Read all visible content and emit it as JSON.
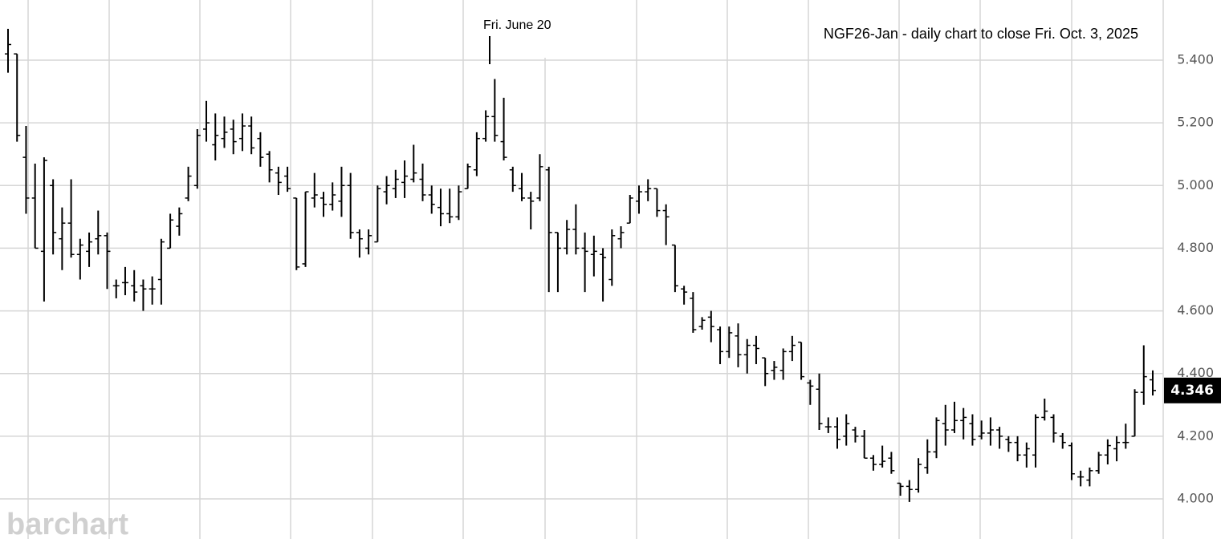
{
  "chart_data": {
    "type": "ohlc",
    "title": "NGF26-Jan - daily chart to close Fri. Oct. 3, 2025",
    "annotation": "Fri. June 20",
    "watermark": "barchart",
    "color": "#000000",
    "grid": true,
    "ylim": [
      3.872,
      5.592
    ],
    "yticks": [
      {
        "value": 4.0,
        "label": "4.000"
      },
      {
        "value": 4.2,
        "label": "4.200"
      },
      {
        "value": 4.4,
        "label": "4.400"
      },
      {
        "value": 4.6,
        "label": "4.600"
      },
      {
        "value": 4.8,
        "label": "4.800"
      },
      {
        "value": 5.0,
        "label": "5.000"
      },
      {
        "value": 5.2,
        "label": "5.200"
      },
      {
        "value": 5.4,
        "label": "5.400"
      }
    ],
    "open": [
      5.42,
      5.42,
      5.09,
      4.96,
      4.79,
      5.0,
      4.83,
      4.88,
      4.78,
      4.79,
      4.83,
      4.84,
      4.68,
      4.69,
      4.68,
      4.68,
      4.67,
      4.7,
      4.8,
      4.87,
      4.96,
      5.0,
      5.18,
      5.13,
      5.15,
      5.18,
      5.15,
      5.19,
      5.15,
      5.1,
      5.04,
      5.03,
      4.96,
      4.75,
      4.96,
      4.96,
      4.94,
      4.95,
      5.0,
      4.85,
      4.8,
      4.82,
      4.98,
      4.99,
      5.01,
      5.02,
      5.02,
      4.97,
      4.93,
      4.91,
      4.9,
      4.99,
      5.05,
      5.15,
      5.22,
      5.14,
      5.05,
      4.99,
      4.96,
      4.96,
      5.05,
      4.85,
      4.8,
      4.86,
      4.8,
      4.78,
      4.78,
      4.7,
      4.83,
      4.88,
      4.95,
      4.98,
      4.99,
      4.92,
      4.81,
      4.67,
      4.64,
      4.55,
      4.58,
      4.54,
      4.47,
      4.52,
      4.46,
      4.49,
      4.45,
      4.41,
      4.41,
      4.47,
      4.5,
      4.37,
      4.35,
      4.23,
      4.23,
      4.2,
      4.22,
      4.2,
      4.13,
      4.11,
      4.13,
      4.05,
      4.04,
      4.03,
      4.1,
      4.15,
      4.24,
      4.22,
      4.25,
      4.24,
      4.2,
      4.21,
      4.22,
      4.19,
      4.18,
      4.14,
      4.14,
      4.26,
      4.26,
      4.2,
      4.17,
      4.07,
      4.06,
      4.09,
      4.14,
      4.16,
      4.18,
      4.2,
      4.34,
      4.38
    ],
    "high": [
      5.5,
      5.42,
      5.19,
      5.07,
      5.09,
      5.02,
      4.93,
      5.02,
      4.83,
      4.85,
      4.92,
      4.85,
      4.7,
      4.74,
      4.73,
      4.7,
      4.71,
      4.83,
      4.91,
      4.93,
      5.06,
      5.18,
      5.27,
      5.23,
      5.22,
      5.21,
      5.23,
      5.22,
      5.17,
      5.11,
      5.06,
      5.06,
      4.96,
      4.98,
      5.04,
      4.98,
      5.01,
      5.06,
      5.04,
      4.86,
      4.86,
      5.0,
      5.03,
      5.05,
      5.08,
      5.13,
      5.07,
      5.0,
      4.99,
      4.99,
      5.0,
      5.07,
      5.17,
      5.24,
      5.34,
      5.28,
      5.06,
      5.04,
      4.98,
      5.1,
      5.06,
      4.85,
      4.89,
      4.94,
      4.85,
      4.84,
      4.8,
      4.86,
      4.87,
      4.97,
      5.0,
      5.02,
      4.99,
      4.94,
      4.81,
      4.68,
      4.66,
      4.58,
      4.6,
      4.55,
      4.55,
      4.56,
      4.51,
      4.52,
      4.45,
      4.44,
      4.48,
      4.52,
      4.5,
      4.38,
      4.4,
      4.26,
      4.26,
      4.27,
      4.23,
      4.22,
      4.14,
      4.17,
      4.15,
      4.05,
      4.06,
      4.13,
      4.19,
      4.26,
      4.3,
      4.31,
      4.29,
      4.27,
      4.25,
      4.26,
      4.23,
      4.2,
      4.2,
      4.18,
      4.27,
      4.32,
      4.27,
      4.21,
      4.18,
      4.09,
      4.1,
      4.15,
      4.19,
      4.2,
      4.24,
      4.35,
      4.49,
      4.41
    ],
    "low": [
      5.36,
      5.14,
      4.91,
      4.8,
      4.63,
      4.78,
      4.73,
      4.77,
      4.7,
      4.74,
      4.78,
      4.67,
      4.64,
      4.65,
      4.63,
      4.6,
      4.62,
      4.62,
      4.8,
      4.84,
      4.95,
      4.99,
      5.14,
      5.08,
      5.12,
      5.1,
      5.11,
      5.1,
      5.06,
      5.01,
      4.97,
      4.98,
      4.73,
      4.74,
      4.93,
      4.9,
      4.92,
      4.9,
      4.83,
      4.77,
      4.78,
      4.82,
      4.94,
      4.96,
      4.96,
      5.01,
      4.95,
      4.91,
      4.87,
      4.88,
      4.89,
      4.99,
      5.03,
      5.14,
      5.14,
      5.08,
      4.98,
      4.95,
      4.86,
      4.95,
      4.66,
      4.66,
      4.78,
      4.78,
      4.66,
      4.71,
      4.63,
      4.68,
      4.8,
      4.88,
      4.91,
      4.95,
      4.9,
      4.81,
      4.66,
      4.62,
      4.53,
      4.54,
      4.5,
      4.43,
      4.45,
      4.42,
      4.4,
      4.43,
      4.36,
      4.38,
      4.38,
      4.44,
      4.38,
      4.3,
      4.22,
      4.21,
      4.16,
      4.17,
      4.18,
      4.13,
      4.09,
      4.1,
      4.08,
      4.01,
      3.99,
      4.02,
      4.08,
      4.13,
      4.17,
      4.21,
      4.19,
      4.17,
      4.19,
      4.17,
      4.16,
      4.15,
      4.12,
      4.1,
      4.1,
      4.25,
      4.18,
      4.16,
      4.06,
      4.04,
      4.04,
      4.08,
      4.11,
      4.12,
      4.16,
      4.2,
      4.3,
      4.33
    ],
    "close": [
      5.45,
      5.16,
      4.96,
      4.8,
      5.08,
      4.85,
      4.88,
      4.78,
      4.81,
      4.82,
      4.84,
      4.79,
      4.68,
      4.69,
      4.66,
      4.67,
      4.67,
      4.82,
      4.89,
      4.91,
      5.03,
      5.16,
      5.2,
      5.16,
      5.17,
      5.14,
      5.19,
      5.12,
      5.09,
      5.05,
      5.01,
      4.99,
      4.74,
      4.98,
      4.97,
      4.94,
      4.97,
      5.0,
      4.85,
      4.83,
      4.84,
      4.99,
      5.0,
      5.02,
      5.03,
      5.04,
      4.97,
      4.94,
      4.91,
      4.9,
      4.98,
      5.06,
      5.15,
      5.22,
      5.16,
      5.09,
      5.0,
      4.96,
      4.95,
      5.06,
      4.85,
      4.8,
      4.86,
      4.8,
      4.79,
      4.79,
      4.77,
      4.84,
      4.85,
      4.96,
      4.98,
      4.99,
      4.92,
      4.9,
      4.68,
      4.66,
      4.54,
      4.57,
      4.55,
      4.47,
      4.53,
      4.46,
      4.49,
      4.48,
      4.4,
      4.42,
      4.47,
      4.49,
      4.39,
      4.36,
      4.24,
      4.23,
      4.19,
      4.24,
      4.2,
      4.13,
      4.11,
      4.12,
      4.09,
      4.04,
      4.03,
      4.11,
      4.15,
      4.25,
      4.22,
      4.25,
      4.26,
      4.19,
      4.21,
      4.22,
      4.2,
      4.18,
      4.14,
      4.16,
      4.26,
      4.28,
      4.21,
      4.18,
      4.08,
      4.07,
      4.09,
      4.14,
      4.17,
      4.18,
      4.18,
      4.34,
      4.39,
      4.346
    ]
  }
}
